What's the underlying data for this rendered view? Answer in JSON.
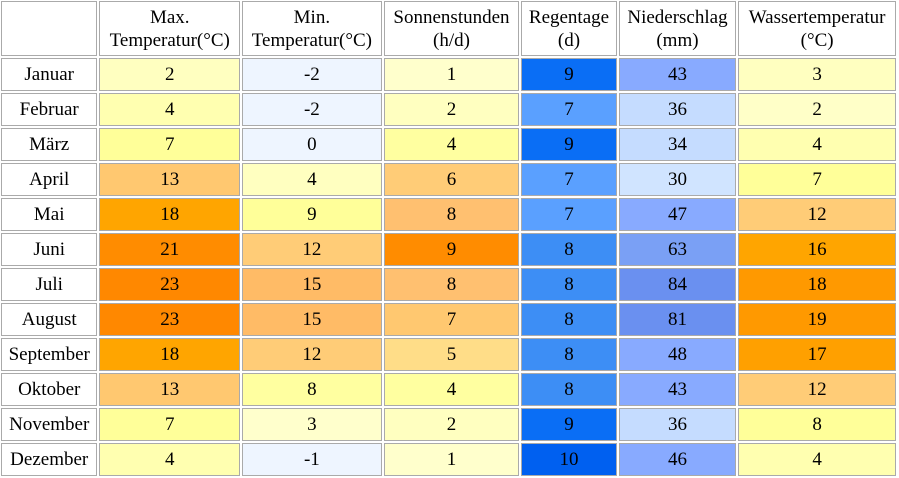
{
  "table": {
    "header": [
      [
        "Max.",
        "Temperatur(°C)"
      ],
      [
        "Min.",
        "Temperatur(°C)"
      ],
      [
        "Sonnenstunden",
        "(h/d)"
      ],
      [
        "Regentage",
        "(d)"
      ],
      [
        "Niederschlag",
        "(mm)"
      ],
      [
        "Wassertemperatur",
        "(°C)"
      ]
    ],
    "rows": [
      {
        "month": "Januar",
        "values": [
          2,
          -2,
          1,
          9,
          43,
          3
        ],
        "colors": [
          "#ffffc0",
          "#eef5ff",
          "#ffffcc",
          "#0a6ef5",
          "#88aaff",
          "#ffffc0"
        ]
      },
      {
        "month": "Februar",
        "values": [
          4,
          -2,
          2,
          7,
          36,
          2
        ],
        "colors": [
          "#ffffb0",
          "#eef5ff",
          "#ffffc0",
          "#5aa0ff",
          "#c5dcff",
          "#ffffc8"
        ]
      },
      {
        "month": "März",
        "values": [
          7,
          0,
          4,
          9,
          34,
          4
        ],
        "colors": [
          "#ffff99",
          "#eef5ff",
          "#ffffa0",
          "#0a6ef5",
          "#c5dcff",
          "#ffffb0"
        ]
      },
      {
        "month": "April",
        "values": [
          13,
          4,
          6,
          7,
          30,
          7
        ],
        "colors": [
          "#ffc870",
          "#ffffc0",
          "#ffcc77",
          "#5aa0ff",
          "#d0e4ff",
          "#ffff99"
        ]
      },
      {
        "month": "Mai",
        "values": [
          18,
          9,
          8,
          7,
          47,
          12
        ],
        "colors": [
          "#ffa500",
          "#ffff99",
          "#ffc070",
          "#5aa0ff",
          "#88aaff",
          "#ffcc77"
        ]
      },
      {
        "month": "Juni",
        "values": [
          21,
          12,
          9,
          8,
          63,
          16
        ],
        "colors": [
          "#ff8c00",
          "#ffcc77",
          "#ff8c00",
          "#3d8ef5",
          "#7aa0f5",
          "#ffa500"
        ]
      },
      {
        "month": "Juli",
        "values": [
          23,
          15,
          8,
          8,
          84,
          18
        ],
        "colors": [
          "#ff8800",
          "#ffbb66",
          "#ffc070",
          "#3d8ef5",
          "#6a90f0",
          "#ff9900"
        ]
      },
      {
        "month": "August",
        "values": [
          23,
          15,
          7,
          8,
          81,
          19
        ],
        "colors": [
          "#ff8800",
          "#ffbb66",
          "#ffc870",
          "#3d8ef5",
          "#6a90f0",
          "#ff9900"
        ]
      },
      {
        "month": "September",
        "values": [
          18,
          12,
          5,
          8,
          48,
          17
        ],
        "colors": [
          "#ffa500",
          "#ffcc77",
          "#ffdd88",
          "#3d8ef5",
          "#88aaff",
          "#ffa000"
        ]
      },
      {
        "month": "Oktober",
        "values": [
          13,
          8,
          4,
          8,
          43,
          12
        ],
        "colors": [
          "#ffc870",
          "#ffffa0",
          "#ffffa0",
          "#3d8ef5",
          "#88aaff",
          "#ffcc77"
        ]
      },
      {
        "month": "November",
        "values": [
          7,
          3,
          2,
          9,
          36,
          8
        ],
        "colors": [
          "#ffff99",
          "#ffffcc",
          "#ffffc0",
          "#0a6ef5",
          "#c5dcff",
          "#ffff99"
        ]
      },
      {
        "month": "Dezember",
        "values": [
          4,
          -1,
          1,
          10,
          46,
          4
        ],
        "colors": [
          "#ffffb0",
          "#eef5ff",
          "#ffffcc",
          "#0060f0",
          "#88aaff",
          "#ffffb0"
        ]
      }
    ]
  }
}
